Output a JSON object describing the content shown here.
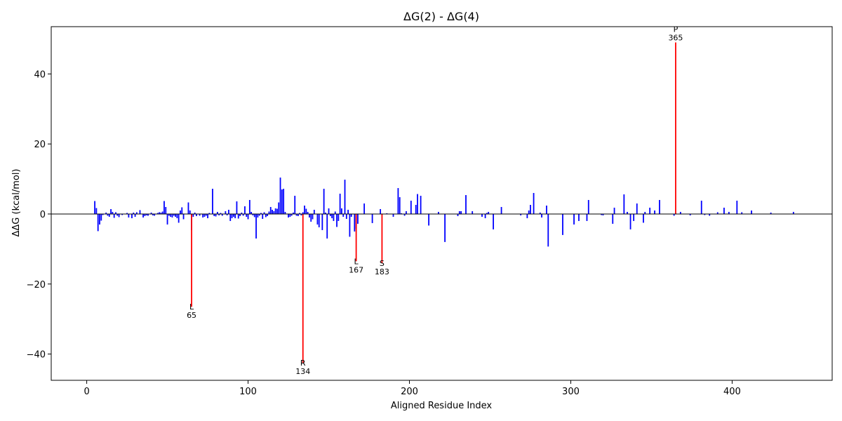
{
  "chart_data": {
    "type": "bar",
    "title": "ΔG(2) - ΔG(4)",
    "xlabel": "Aligned Residue Index",
    "ylabel": "ΔΔG (kcal/mol)",
    "xlim": [
      -22,
      462
    ],
    "ylim": [
      -47.5,
      53.5
    ],
    "xticks": [
      0,
      100,
      200,
      300,
      400
    ],
    "yticks": [
      -40,
      -20,
      0,
      20,
      40
    ],
    "xtick_labels": [
      "0",
      "100",
      "200",
      "300",
      "400"
    ],
    "ytick_labels": [
      "−40",
      "−20",
      "0",
      "20",
      "40"
    ],
    "grid": false,
    "zero_line": true,
    "colors": {
      "normal": "#0000ff",
      "highlight": "#ff0000",
      "axis": "#000000"
    },
    "series": [
      {
        "color": "#0000ff",
        "points": [
          [
            5,
            3.7
          ],
          [
            6,
            1.7
          ],
          [
            7,
            -4.9
          ],
          [
            8,
            -3.0
          ],
          [
            9,
            -1.9
          ],
          [
            10,
            -0.3
          ],
          [
            12,
            0.4
          ],
          [
            13,
            -0.5
          ],
          [
            14,
            -0.8
          ],
          [
            15,
            1.4
          ],
          [
            16,
            0.6
          ],
          [
            17,
            -1.1
          ],
          [
            18,
            0.5
          ],
          [
            19,
            -0.5
          ],
          [
            20,
            -0.9
          ],
          [
            22,
            -0.3
          ],
          [
            25,
            0.3
          ],
          [
            26,
            -1.0
          ],
          [
            28,
            -1.2
          ],
          [
            29,
            0.4
          ],
          [
            30,
            -0.8
          ],
          [
            31,
            0.5
          ],
          [
            33,
            1.1
          ],
          [
            35,
            -1.0
          ],
          [
            36,
            -0.6
          ],
          [
            37,
            -0.4
          ],
          [
            38,
            -0.5
          ],
          [
            40,
            0.4
          ],
          [
            41,
            -0.4
          ],
          [
            42,
            -0.5
          ],
          [
            44,
            0.3
          ],
          [
            45,
            0.5
          ],
          [
            46,
            0.4
          ],
          [
            47,
            0.7
          ],
          [
            48,
            3.7
          ],
          [
            49,
            2.0
          ],
          [
            50,
            -3.0
          ],
          [
            51,
            -0.5
          ],
          [
            52,
            -0.8
          ],
          [
            53,
            -1.0
          ],
          [
            54,
            -0.5
          ],
          [
            55,
            -0.8
          ],
          [
            56,
            -1.2
          ],
          [
            57,
            -2.5
          ],
          [
            58,
            1.0
          ],
          [
            59,
            1.9
          ],
          [
            60,
            -1.5
          ],
          [
            63,
            3.3
          ],
          [
            64,
            1.0
          ],
          [
            65,
            -4.6
          ],
          [
            66,
            -0.8
          ],
          [
            67,
            0.4
          ],
          [
            68,
            -0.6
          ],
          [
            70,
            -0.5
          ],
          [
            72,
            -1.0
          ],
          [
            73,
            -0.8
          ],
          [
            74,
            -0.5
          ],
          [
            75,
            -1.2
          ],
          [
            76,
            0.3
          ],
          [
            78,
            7.2
          ],
          [
            79,
            -0.6
          ],
          [
            80,
            -0.7
          ],
          [
            81,
            0.6
          ],
          [
            82,
            -0.4
          ],
          [
            83,
            0.3
          ],
          [
            84,
            -0.5
          ],
          [
            86,
            0.8
          ],
          [
            87,
            -0.4
          ],
          [
            88,
            1.2
          ],
          [
            89,
            -2.0
          ],
          [
            90,
            -1.2
          ],
          [
            91,
            -0.8
          ],
          [
            92,
            -1.2
          ],
          [
            93,
            3.6
          ],
          [
            94,
            -1.3
          ],
          [
            95,
            -0.6
          ],
          [
            96,
            0.4
          ],
          [
            97,
            -0.5
          ],
          [
            98,
            2.2
          ],
          [
            99,
            -0.8
          ],
          [
            100,
            -1.5
          ],
          [
            101,
            4.0
          ],
          [
            102,
            0.6
          ],
          [
            103,
            -0.4
          ],
          [
            104,
            -0.9
          ],
          [
            105,
            -7.0
          ],
          [
            106,
            -1.0
          ],
          [
            107,
            -0.5
          ],
          [
            108,
            0.3
          ],
          [
            109,
            -1.4
          ],
          [
            110,
            0.5
          ],
          [
            111,
            -0.9
          ],
          [
            112,
            -0.6
          ],
          [
            113,
            0.7
          ],
          [
            114,
            2.0
          ],
          [
            115,
            1.2
          ],
          [
            116,
            0.8
          ],
          [
            117,
            1.6
          ],
          [
            118,
            1.5
          ],
          [
            119,
            3.3
          ],
          [
            120,
            10.4
          ],
          [
            121,
            7.0
          ],
          [
            122,
            7.2
          ],
          [
            123,
            0.6
          ],
          [
            125,
            -1.0
          ],
          [
            126,
            -0.8
          ],
          [
            127,
            -0.5
          ],
          [
            128,
            0.4
          ],
          [
            129,
            5.2
          ],
          [
            130,
            -0.5
          ],
          [
            131,
            -0.6
          ],
          [
            132,
            0.3
          ],
          [
            133,
            -0.4
          ],
          [
            134,
            0.5
          ],
          [
            135,
            2.4
          ],
          [
            136,
            1.5
          ],
          [
            137,
            0.6
          ],
          [
            138,
            -1.0
          ],
          [
            139,
            -2.2
          ],
          [
            140,
            -1.5
          ],
          [
            141,
            1.2
          ],
          [
            143,
            -3.0
          ],
          [
            144,
            -3.8
          ],
          [
            146,
            -4.6
          ],
          [
            147,
            7.2
          ],
          [
            148,
            0.4
          ],
          [
            149,
            -7.0
          ],
          [
            150,
            1.6
          ],
          [
            151,
            -0.6
          ],
          [
            152,
            -1.2
          ],
          [
            153,
            -2.0
          ],
          [
            154,
            0.7
          ],
          [
            155,
            -3.7
          ],
          [
            156,
            -2.0
          ],
          [
            157,
            5.8
          ],
          [
            158,
            1.6
          ],
          [
            159,
            -0.8
          ],
          [
            160,
            9.8
          ],
          [
            161,
            -1.4
          ],
          [
            162,
            1.2
          ],
          [
            163,
            -6.5
          ],
          [
            164,
            -0.8
          ],
          [
            166,
            -5.0
          ],
          [
            167,
            -4.2
          ],
          [
            168,
            -2.8
          ],
          [
            172,
            3.0
          ],
          [
            177,
            -2.6
          ],
          [
            182,
            1.4
          ],
          [
            186,
            0.2
          ],
          [
            190,
            -0.8
          ],
          [
            193,
            7.4
          ],
          [
            194,
            4.8
          ],
          [
            195,
            0.2
          ],
          [
            197,
            -0.5
          ],
          [
            198,
            0.8
          ],
          [
            201,
            3.8
          ],
          [
            204,
            2.6
          ],
          [
            205,
            5.7
          ],
          [
            207,
            5.2
          ],
          [
            212,
            -3.3
          ],
          [
            218,
            0.6
          ],
          [
            222,
            -8.0
          ],
          [
            230,
            -0.6
          ],
          [
            231,
            0.8
          ],
          [
            232,
            0.8
          ],
          [
            235,
            5.4
          ],
          [
            239,
            0.8
          ],
          [
            245,
            -0.8
          ],
          [
            247,
            -1.2
          ],
          [
            248,
            0.3
          ],
          [
            249,
            0.6
          ],
          [
            252,
            -4.4
          ],
          [
            257,
            2.0
          ],
          [
            269,
            -0.4
          ],
          [
            273,
            -1.2
          ],
          [
            274,
            1.0
          ],
          [
            275,
            2.6
          ],
          [
            277,
            6.0
          ],
          [
            281,
            0.4
          ],
          [
            282,
            -1.0
          ],
          [
            285,
            2.4
          ],
          [
            286,
            -9.3
          ],
          [
            295,
            -6.0
          ],
          [
            302,
            -3.0
          ],
          [
            305,
            -2.0
          ],
          [
            310,
            -2.0
          ],
          [
            311,
            4.0
          ],
          [
            319,
            -0.3
          ],
          [
            320,
            -0.4
          ],
          [
            326,
            -2.8
          ],
          [
            327,
            1.8
          ],
          [
            333,
            5.6
          ],
          [
            335,
            0.6
          ],
          [
            337,
            -4.4
          ],
          [
            339,
            -2.0
          ],
          [
            341,
            3.0
          ],
          [
            345,
            -2.5
          ],
          [
            346,
            0.6
          ],
          [
            349,
            1.8
          ],
          [
            352,
            1.0
          ],
          [
            355,
            4.0
          ],
          [
            364,
            -0.5
          ],
          [
            368,
            0.6
          ],
          [
            374,
            -0.4
          ],
          [
            381,
            3.8
          ],
          [
            383,
            -0.3
          ],
          [
            386,
            -0.5
          ],
          [
            391,
            0.5
          ],
          [
            395,
            1.8
          ],
          [
            398,
            0.6
          ],
          [
            403,
            3.8
          ],
          [
            406,
            0.5
          ],
          [
            412,
            1.0
          ],
          [
            424,
            0.4
          ],
          [
            438,
            0.6
          ]
        ]
      },
      {
        "color": "#ff0000",
        "points": [
          [
            65,
            -26.5
          ],
          [
            134,
            -42.5
          ],
          [
            167,
            -13.5
          ],
          [
            183,
            -14.0
          ],
          [
            365,
            49.0
          ]
        ]
      }
    ],
    "annotations": [
      {
        "x": 65,
        "y": -26.5,
        "residue": "L",
        "index": "65"
      },
      {
        "x": 134,
        "y": -42.5,
        "residue": "R",
        "index": "134"
      },
      {
        "x": 167,
        "y": -13.5,
        "residue": "L",
        "index": "167"
      },
      {
        "x": 183,
        "y": -14.0,
        "residue": "S",
        "index": "183"
      },
      {
        "x": 365,
        "y": 49.0,
        "residue": "P",
        "index": "365"
      }
    ]
  }
}
